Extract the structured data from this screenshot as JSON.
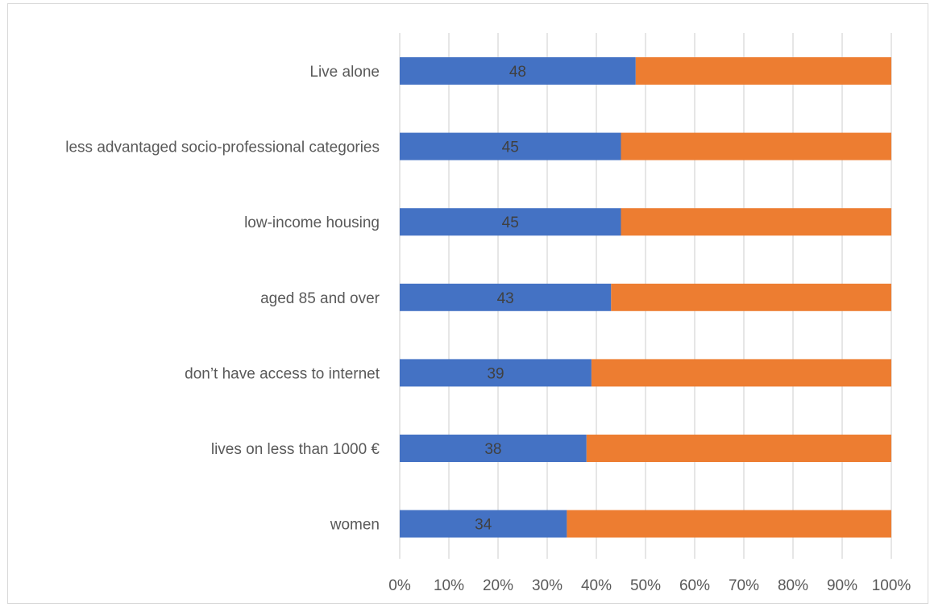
{
  "chart_data": {
    "type": "bar",
    "orientation": "horizontal",
    "stacked": "percent",
    "categories": [
      "Live alone",
      "less advantaged socio-professional categories",
      "low-income housing",
      "aged 85 and over",
      "don’t have access to internet",
      "lives on less than 1000 €",
      "women"
    ],
    "series": [
      {
        "values": [
          48,
          45,
          45,
          43,
          39,
          38,
          34
        ],
        "color": "#4472c4",
        "show_labels": true
      },
      {
        "values": [
          52,
          55,
          55,
          57,
          61,
          62,
          66
        ],
        "color": "#ed7d31",
        "show_labels": false
      }
    ],
    "x_ticks": [
      "0%",
      "10%",
      "20%",
      "30%",
      "40%",
      "50%",
      "60%",
      "70%",
      "80%",
      "90%",
      "100%"
    ],
    "xlim": [
      0,
      100
    ],
    "grid": "vertical",
    "legend": "none",
    "title": "",
    "xlabel": "",
    "ylabel": ""
  }
}
